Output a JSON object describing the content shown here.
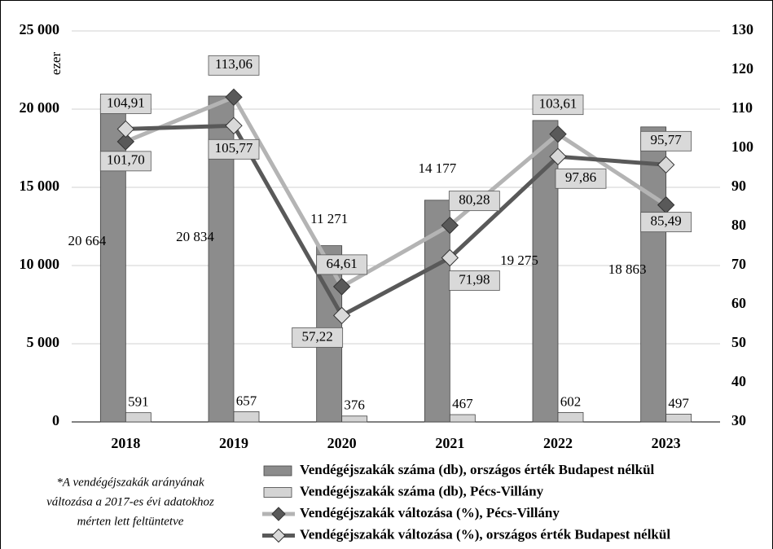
{
  "chart_data": {
    "type": "bar",
    "categories": [
      "2018",
      "2019",
      "2020",
      "2021",
      "2022",
      "2023"
    ],
    "y_unit_label": "ezer",
    "ylim": [
      0,
      25000
    ],
    "yticks": [
      {
        "value": 0,
        "label": "0"
      },
      {
        "value": 5000,
        "label": "5 000"
      },
      {
        "value": 10000,
        "label": "10 000"
      },
      {
        "value": 15000,
        "label": "15 000"
      },
      {
        "value": 20000,
        "label": "20 000"
      },
      {
        "value": 25000,
        "label": "25 000"
      }
    ],
    "y2lim": [
      30,
      130
    ],
    "y2ticks": [
      30,
      40,
      50,
      60,
      70,
      80,
      90,
      100,
      110,
      120,
      130
    ],
    "grid": true,
    "series": [
      {
        "name": "Vendégéjszakák száma (db), országos érték Budapest nélkül",
        "type": "bar",
        "color": "#8c8c8c",
        "values": [
          20664,
          20834,
          11271,
          14177,
          19275,
          18863
        ],
        "value_labels": [
          "20 664",
          "20 834",
          "11 271",
          "14 177",
          "19 275",
          "18 863"
        ]
      },
      {
        "name": "Vendégéjszakák száma (db), Pécs-Villány",
        "type": "bar",
        "color": "#d4d4d4",
        "values": [
          591,
          657,
          376,
          467,
          602,
          497
        ]
      },
      {
        "name": "Vendégéjszakák változása (%), Pécs-Villány",
        "type": "line",
        "axis": "y2",
        "color": "#b4b4b4",
        "marker_color": "#595959",
        "values": [
          101.7,
          113.06,
          64.61,
          80.28,
          103.61,
          85.49
        ],
        "value_labels": [
          "101,70",
          "113,06",
          "64,61",
          "80,28",
          "103,61",
          "85,49"
        ]
      },
      {
        "name": "Vendégéjszakák változása (%), országos érték Budapest nélkül",
        "type": "line",
        "axis": "y2",
        "color": "#595959",
        "marker_color": "#d9d9d9",
        "values": [
          104.91,
          105.77,
          57.22,
          71.98,
          97.86,
          95.77
        ],
        "value_labels": [
          "104,91",
          "105,77",
          "57,22",
          "71,98",
          "97,86",
          "95,77"
        ]
      }
    ],
    "footnote": [
      "*A vendégéjszakák arányának",
      "változása a 2017-es évi adatokhoz",
      "mérten lett feltüntetve"
    ]
  }
}
